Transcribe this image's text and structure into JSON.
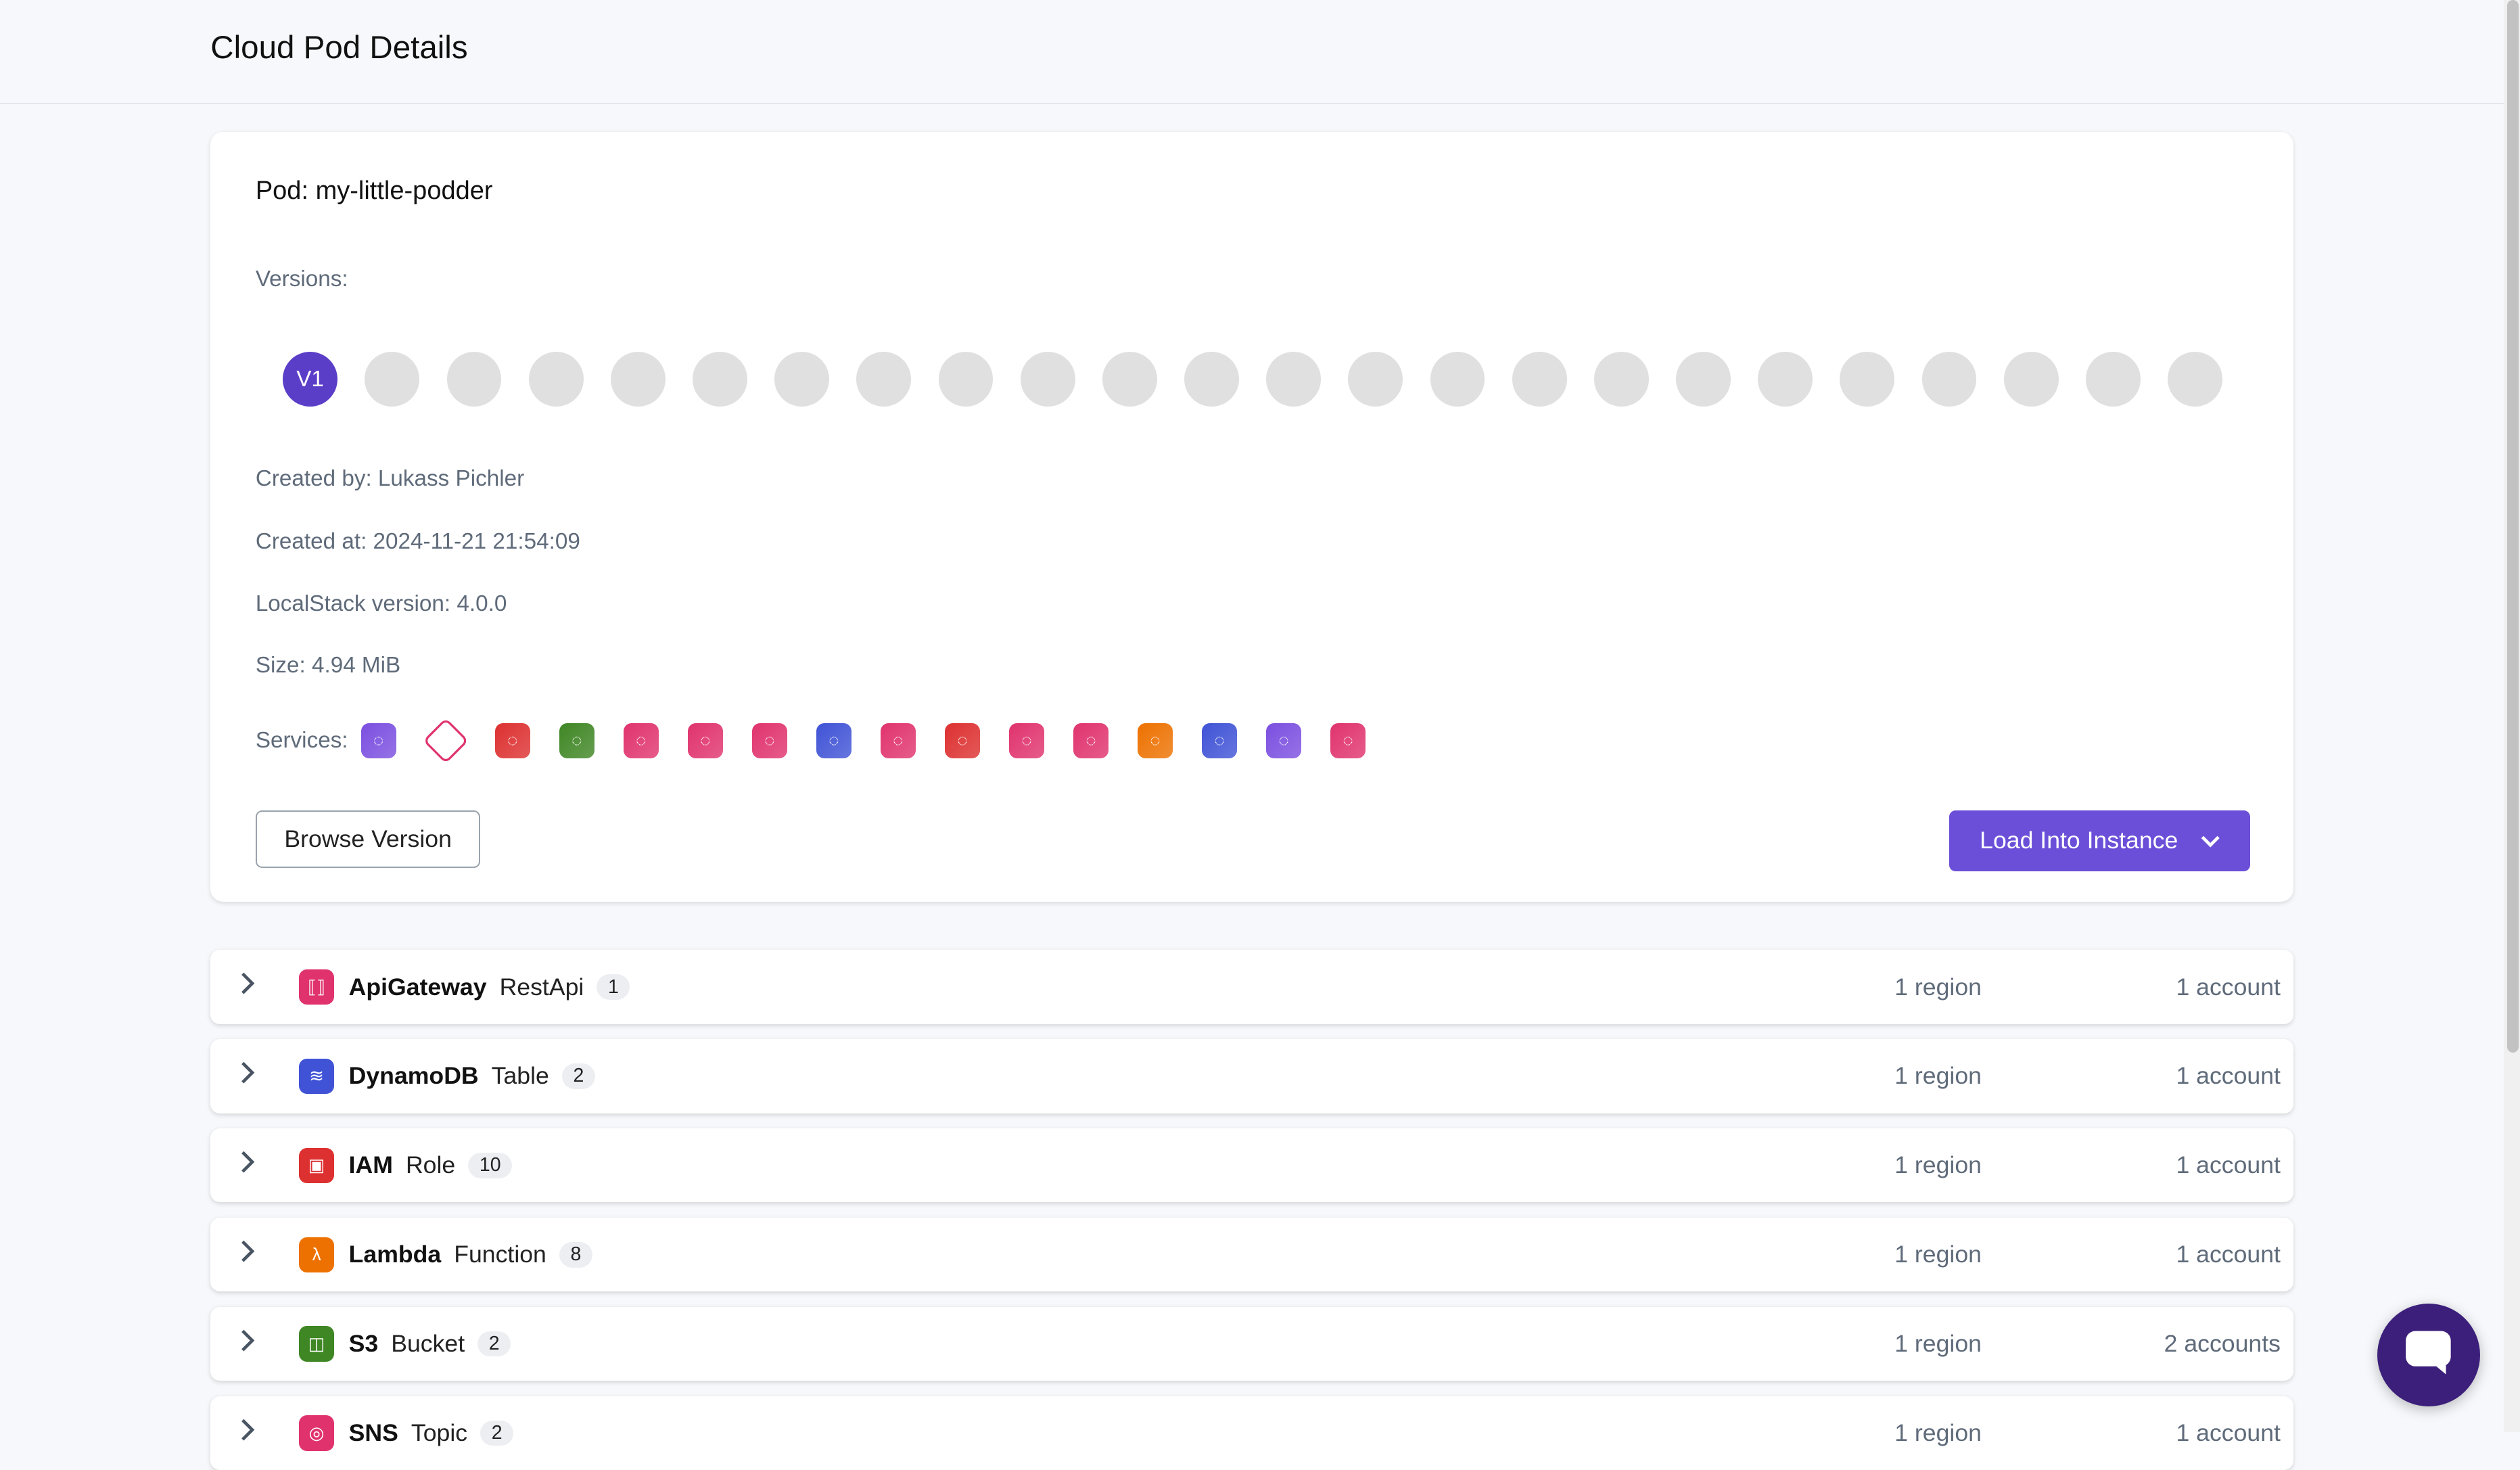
{
  "header": {
    "title": "Cloud Pod Details"
  },
  "pod": {
    "title": "Pod: my-little-podder",
    "versions_label": "Versions:",
    "active_version": "V1",
    "version_count": 24,
    "created_by": "Created by: Lukass Pichler",
    "created_at": "Created at: 2024-11-21 21:54:09",
    "localstack_version": "LocalStack version: 4.0.0",
    "size": "Size: 4.94 MiB",
    "services_label": "Services:",
    "services": [
      {
        "icon": "cloudfront-icon",
        "color": "#7b4fe0"
      },
      {
        "icon": "resource-groups-tagging-icon",
        "color": "#e0336e",
        "outline": true
      },
      {
        "icon": "iam-icon",
        "color": "#dd3030"
      },
      {
        "icon": "s3-icon",
        "color": "#3f8624"
      },
      {
        "icon": "eventbridge-icon",
        "color": "#e0336e"
      },
      {
        "icon": "step-functions-icon",
        "color": "#e0336e"
      },
      {
        "icon": "sqs-icon",
        "color": "#e0336e"
      },
      {
        "icon": "dynamodb-icon",
        "color": "#4053d6"
      },
      {
        "icon": "cloudwatch-logs-icon",
        "color": "#e0336e"
      },
      {
        "icon": "sts-icon",
        "color": "#dd3030"
      },
      {
        "icon": "sns-icon",
        "color": "#e0336e"
      },
      {
        "icon": "apigateway-icon",
        "color": "#e0336e"
      },
      {
        "icon": "lambda-icon",
        "color": "#ed7100"
      },
      {
        "icon": "dynamodb-streams-icon",
        "color": "#4053d6"
      },
      {
        "icon": "kinesis-icon",
        "color": "#7b4fe0"
      },
      {
        "icon": "apigatewayv2-icon",
        "color": "#e0336e"
      }
    ],
    "browse_label": "Browse Version",
    "load_label": "Load Into Instance"
  },
  "resources": [
    {
      "service": "ApiGateway",
      "type": "RestApi",
      "count": "1",
      "regions": "1 region",
      "accounts": "1 account",
      "color": "#e0336e",
      "glyph": "⟦⟧"
    },
    {
      "service": "DynamoDB",
      "type": "Table",
      "count": "2",
      "regions": "1 region",
      "accounts": "1 account",
      "color": "#4053d6",
      "glyph": "≋"
    },
    {
      "service": "IAM",
      "type": "Role",
      "count": "10",
      "regions": "1 region",
      "accounts": "1 account",
      "color": "#dd3030",
      "glyph": "▣"
    },
    {
      "service": "Lambda",
      "type": "Function",
      "count": "8",
      "regions": "1 region",
      "accounts": "1 account",
      "color": "#ed7100",
      "glyph": "λ"
    },
    {
      "service": "S3",
      "type": "Bucket",
      "count": "2",
      "regions": "1 region",
      "accounts": "2 accounts",
      "color": "#3f8624",
      "glyph": "◫"
    },
    {
      "service": "SNS",
      "type": "Topic",
      "count": "2",
      "regions": "1 region",
      "accounts": "1 account",
      "color": "#e0336e",
      "glyph": "◎"
    }
  ]
}
